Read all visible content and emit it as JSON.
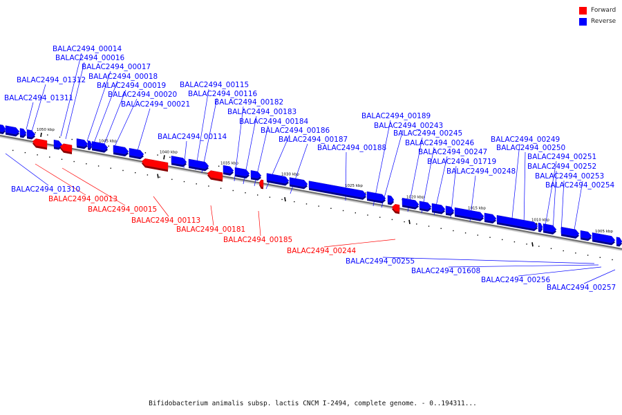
{
  "legend": {
    "forward_label": "Forward",
    "reverse_label": "Reverse",
    "forward_color": "#ff0000",
    "reverse_color": "#0000ff"
  },
  "caption": "Bifidobacterium animalis subsp. lactis CNCM I-2494, complete genome. - 0..194311...",
  "axis": {
    "ticks": [
      {
        "label": "1050 kbp"
      },
      {
        "label": "1045 kbp"
      },
      {
        "label": "1040 kbp"
      },
      {
        "label": "1035 kbp"
      },
      {
        "label": "1030 kbp"
      },
      {
        "label": "1025 kbp"
      },
      {
        "label": "1020 kbp"
      },
      {
        "label": "1015 kbp"
      },
      {
        "label": "1010 kbp"
      },
      {
        "label": "1005 kbp"
      }
    ]
  },
  "genes": [
    {
      "id": "BALAC2494_00014",
      "strand": "reverse"
    },
    {
      "id": "BALAC2494_00016",
      "strand": "reverse"
    },
    {
      "id": "BALAC2494_00017",
      "strand": "reverse"
    },
    {
      "id": "BALAC2494_00018",
      "strand": "reverse"
    },
    {
      "id": "BALAC2494_01312",
      "strand": "reverse"
    },
    {
      "id": "BALAC2494_00019",
      "strand": "reverse"
    },
    {
      "id": "BALAC2494_00020",
      "strand": "reverse"
    },
    {
      "id": "BALAC2494_01311",
      "strand": "reverse"
    },
    {
      "id": "BALAC2494_00021",
      "strand": "reverse"
    },
    {
      "id": "BALAC2494_00115",
      "strand": "reverse"
    },
    {
      "id": "BALAC2494_00116",
      "strand": "reverse"
    },
    {
      "id": "BALAC2494_00182",
      "strand": "reverse"
    },
    {
      "id": "BALAC2494_00183",
      "strand": "reverse"
    },
    {
      "id": "BALAC2494_00184",
      "strand": "reverse"
    },
    {
      "id": "BALAC2494_00186",
      "strand": "reverse"
    },
    {
      "id": "BALAC2494_00114",
      "strand": "reverse"
    },
    {
      "id": "BALAC2494_00187",
      "strand": "reverse"
    },
    {
      "id": "BALAC2494_00188",
      "strand": "reverse"
    },
    {
      "id": "BALAC2494_00189",
      "strand": "reverse"
    },
    {
      "id": "BALAC2494_00243",
      "strand": "reverse"
    },
    {
      "id": "BALAC2494_00245",
      "strand": "reverse"
    },
    {
      "id": "BALAC2494_00246",
      "strand": "reverse"
    },
    {
      "id": "BALAC2494_00247",
      "strand": "reverse"
    },
    {
      "id": "BALAC2494_01719",
      "strand": "reverse"
    },
    {
      "id": "BALAC2494_00248",
      "strand": "reverse"
    },
    {
      "id": "BALAC2494_00249",
      "strand": "reverse"
    },
    {
      "id": "BALAC2494_00250",
      "strand": "reverse"
    },
    {
      "id": "BALAC2494_00251",
      "strand": "reverse"
    },
    {
      "id": "BALAC2494_00252",
      "strand": "reverse"
    },
    {
      "id": "BALAC2494_00253",
      "strand": "reverse"
    },
    {
      "id": "BALAC2494_00254",
      "strand": "reverse"
    },
    {
      "id": "BALAC2494_01310",
      "strand": "reverse"
    },
    {
      "id": "BALAC2494_00013",
      "strand": "forward"
    },
    {
      "id": "BALAC2494_00015",
      "strand": "forward"
    },
    {
      "id": "BALAC2494_00113",
      "strand": "forward"
    },
    {
      "id": "BALAC2494_00181",
      "strand": "forward"
    },
    {
      "id": "BALAC2494_00185",
      "strand": "forward"
    },
    {
      "id": "BALAC2494_00244",
      "strand": "forward"
    },
    {
      "id": "BALAC2494_00255",
      "strand": "reverse"
    },
    {
      "id": "BALAC2494_01608",
      "strand": "reverse"
    },
    {
      "id": "BALAC2494_00256",
      "strand": "reverse"
    },
    {
      "id": "BALAC2494_00257",
      "strand": "reverse"
    }
  ]
}
